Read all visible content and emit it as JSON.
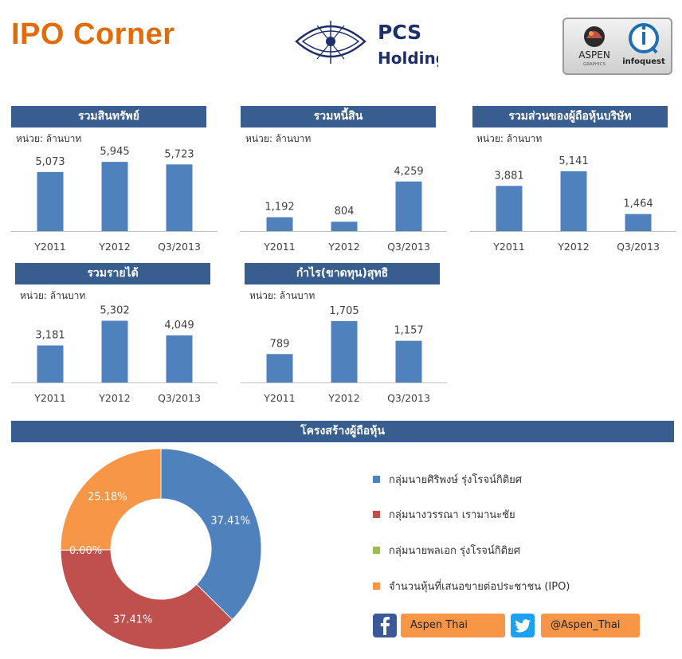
{
  "header": {
    "title": "IPO Corner",
    "company_logo_text_line1": "PCS",
    "company_logo_text_line2": "Holding",
    "partner_logo_aspen": "ASPEN",
    "partner_logo_aspen_sub": "GRAPHICS",
    "partner_logo_infoquest": "infoquest"
  },
  "colors": {
    "header_bar": "#375E8E",
    "bar": "#4F81BD",
    "title": "#E36C0A"
  },
  "unit_label": "หน่วย: ล้านบาท",
  "chart_data": [
    {
      "type": "bar",
      "title": "รวมสินทรัพย์",
      "categories": [
        "Y2011",
        "Y2012",
        "Q3/2013"
      ],
      "values": [
        5073,
        5945,
        5723
      ],
      "value_labels": [
        "5,073",
        "5,945",
        "5,723"
      ],
      "ylim": [
        0,
        6500
      ]
    },
    {
      "type": "bar",
      "title": "รวมหนี้สิน",
      "categories": [
        "Y2011",
        "Y2012",
        "Q3/2013"
      ],
      "values": [
        1192,
        804,
        4259
      ],
      "value_labels": [
        "1,192",
        "804",
        "4,259"
      ],
      "ylim": [
        0,
        6500
      ]
    },
    {
      "type": "bar",
      "title": "รวมส่วนของผู้ถือหุ้นบริษัท",
      "categories": [
        "Y2011",
        "Y2012",
        "Q3/2013"
      ],
      "values": [
        3881,
        5141,
        1464
      ],
      "value_labels": [
        "3,881",
        "5,141",
        "1,464"
      ],
      "ylim": [
        0,
        6500
      ]
    },
    {
      "type": "bar",
      "title": "รวมรายได้",
      "categories": [
        "Y2011",
        "Y2012",
        "Q3/2013"
      ],
      "values": [
        3181,
        5302,
        4049
      ],
      "value_labels": [
        "3,181",
        "5,302",
        "4,049"
      ],
      "ylim": [
        0,
        6500
      ]
    },
    {
      "type": "bar",
      "title": "กำไร(ขาดทุน)สุทธิ",
      "categories": [
        "Y2011",
        "Y2012",
        "Q3/2013"
      ],
      "values": [
        789,
        1705,
        1157
      ],
      "value_labels": [
        "789",
        "1,705",
        "1,157"
      ],
      "ylim": [
        0,
        2100
      ]
    },
    {
      "type": "pie",
      "donut": true,
      "title": "โครงสร้างผู้ถือหุ้น",
      "labels": [
        "กลุ่มนายศิริพงษ์  รุ่งโรจน์กิติยศ",
        "กลุ่มนางวรรณา  เรามานะชัย",
        "กลุ่มนายพลเอก  รุ่งโรจน์กิติยศ",
        "จำนวนหุ้นที่เสนอขายต่อประชาชน  (IPO)"
      ],
      "values": [
        37.41,
        37.41,
        0.0,
        25.18
      ],
      "value_labels": [
        "37.41%",
        "37.41%",
        "0.00%",
        "25.18%"
      ],
      "colors": [
        "#4F81BD",
        "#C0504D",
        "#9BBB59",
        "#F79646"
      ],
      "legend_position": "right"
    }
  ],
  "social": {
    "facebook": "Aspen Thai",
    "twitter": "@Aspen_Thai",
    "facebook_icon": "facebook-icon",
    "twitter_icon": "twitter-bird-icon"
  }
}
